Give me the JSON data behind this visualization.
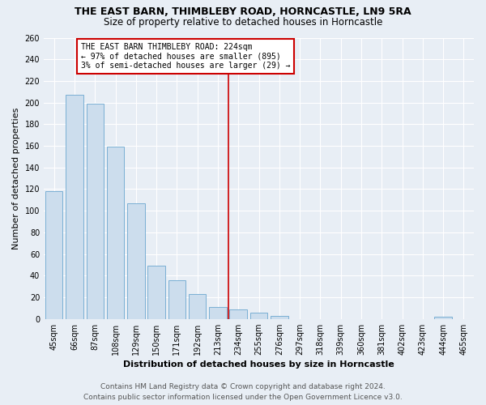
{
  "title": "THE EAST BARN, THIMBLEBY ROAD, HORNCASTLE, LN9 5RA",
  "subtitle": "Size of property relative to detached houses in Horncastle",
  "xlabel": "Distribution of detached houses by size in Horncastle",
  "ylabel": "Number of detached properties",
  "categories": [
    "45sqm",
    "66sqm",
    "87sqm",
    "108sqm",
    "129sqm",
    "150sqm",
    "171sqm",
    "192sqm",
    "213sqm",
    "234sqm",
    "255sqm",
    "276sqm",
    "297sqm",
    "318sqm",
    "339sqm",
    "360sqm",
    "381sqm",
    "402sqm",
    "423sqm",
    "444sqm",
    "465sqm"
  ],
  "values": [
    118,
    207,
    199,
    159,
    107,
    49,
    36,
    23,
    11,
    9,
    6,
    3,
    0,
    0,
    0,
    0,
    0,
    0,
    0,
    2,
    0
  ],
  "bar_color": "#ccdded",
  "bar_edge_color": "#7aafd4",
  "marker_index": 8,
  "marker_label": "THE EAST BARN THIMBLEBY ROAD: 224sqm\n← 97% of detached houses are smaller (895)\n3% of semi-detached houses are larger (29) →",
  "marker_line_color": "#cc0000",
  "annotation_box_edge_color": "#cc0000",
  "ylim": [
    0,
    260
  ],
  "yticks": [
    0,
    20,
    40,
    60,
    80,
    100,
    120,
    140,
    160,
    180,
    200,
    220,
    240,
    260
  ],
  "footer_line1": "Contains HM Land Registry data © Crown copyright and database right 2024.",
  "footer_line2": "Contains public sector information licensed under the Open Government Licence v3.0.",
  "bg_color": "#e8eef5",
  "grid_color": "#ffffff",
  "title_fontsize": 9,
  "subtitle_fontsize": 8.5,
  "axis_label_fontsize": 8,
  "tick_fontsize": 7,
  "footer_fontsize": 6.5,
  "annotation_fontsize": 7
}
